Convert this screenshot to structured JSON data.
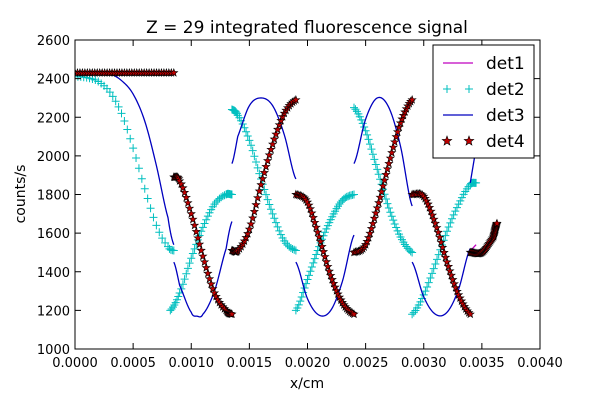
{
  "chart_data": {
    "type": "line",
    "title": "Z = 29 integrated fluorescence signal",
    "xlabel": "x/cm",
    "ylabel": "counts/s",
    "xlim": [
      0.0,
      0.004
    ],
    "ylim": [
      1000,
      2600
    ],
    "xticks": [
      0.0,
      0.0005,
      0.001,
      0.0015,
      0.002,
      0.0025,
      0.003,
      0.0035,
      0.004
    ],
    "xtick_labels": [
      "0.0000",
      "0.0005",
      "0.0010",
      "0.0015",
      "0.0020",
      "0.0025",
      "0.0030",
      "0.0035",
      "0.0040"
    ],
    "yticks": [
      1000,
      1200,
      1400,
      1600,
      1800,
      2000,
      2200,
      2400,
      2600
    ],
    "ytick_labels": [
      "1000",
      "1200",
      "1400",
      "1600",
      "1800",
      "2000",
      "2200",
      "2400",
      "2600"
    ],
    "grid": false,
    "legend_position": "top-right",
    "series": [
      {
        "name": "det1",
        "style": "line",
        "color": "#bf00bf",
        "segments": [
          [
            [
              0.0,
              2430
            ],
            [
              0.00085,
              2430
            ]
          ],
          [
            [
              0.00338,
              1495
            ],
            [
              0.00345,
              1540
            ]
          ]
        ]
      },
      {
        "name": "det2",
        "style": "plus",
        "color": "#00bfbf",
        "segments": [
          [
            [
              0.0,
              2410
            ],
            [
              0.0001,
              2405
            ],
            [
              0.0002,
              2385
            ],
            [
              0.0003,
              2330
            ],
            [
              0.0004,
              2220
            ],
            [
              0.0005,
              2040
            ],
            [
              0.0006,
              1830
            ],
            [
              0.0007,
              1640
            ],
            [
              0.0008,
              1530
            ],
            [
              0.00085,
              1510
            ]
          ],
          [
            [
              0.00082,
              1200
            ],
            [
              0.0009,
              1290
            ],
            [
              0.001,
              1470
            ],
            [
              0.0011,
              1630
            ],
            [
              0.0012,
              1750
            ],
            [
              0.0013,
              1800
            ],
            [
              0.00135,
              1800
            ]
          ],
          [
            [
              0.00135,
              2240
            ],
            [
              0.0014,
              2210
            ],
            [
              0.0015,
              2080
            ],
            [
              0.0016,
              1880
            ],
            [
              0.0017,
              1700
            ],
            [
              0.0018,
              1560
            ],
            [
              0.0019,
              1510
            ]
          ],
          [
            [
              0.0019,
              1200
            ],
            [
              0.002,
              1360
            ],
            [
              0.0021,
              1530
            ],
            [
              0.0022,
              1670
            ],
            [
              0.0023,
              1770
            ],
            [
              0.0024,
              1800
            ]
          ],
          [
            [
              0.0024,
              2250
            ],
            [
              0.0025,
              2130
            ],
            [
              0.0026,
              1930
            ],
            [
              0.0027,
              1730
            ],
            [
              0.0028,
              1580
            ],
            [
              0.0029,
              1500
            ]
          ],
          [
            [
              0.0029,
              1180
            ],
            [
              0.003,
              1280
            ],
            [
              0.0031,
              1440
            ],
            [
              0.0032,
              1610
            ],
            [
              0.0033,
              1750
            ],
            [
              0.0034,
              1850
            ],
            [
              0.00345,
              1860
            ]
          ]
        ]
      },
      {
        "name": "det3",
        "style": "line",
        "color": "#0000bf",
        "segments": [
          [
            [
              0.0,
              2430
            ],
            [
              0.0003,
              2425
            ],
            [
              0.0004,
              2390
            ],
            [
              0.0005,
              2320
            ],
            [
              0.0006,
              2180
            ],
            [
              0.0007,
              1950
            ],
            [
              0.0008,
              1680
            ],
            [
              0.00085,
              1540
            ]
          ],
          [
            [
              0.00085,
              1450
            ],
            [
              0.0009,
              1330
            ],
            [
              0.001,
              1190
            ],
            [
              0.00105,
              1170
            ],
            [
              0.0011,
              1180
            ],
            [
              0.0012,
              1300
            ],
            [
              0.0013,
              1520
            ],
            [
              0.00135,
              1660
            ]
          ],
          [
            [
              0.00135,
              1960
            ],
            [
              0.0014,
              2100
            ],
            [
              0.0015,
              2260
            ],
            [
              0.0016,
              2300
            ],
            [
              0.0017,
              2260
            ],
            [
              0.0018,
              2110
            ],
            [
              0.0019,
              1880
            ]
          ],
          [
            [
              0.0019,
              1450
            ],
            [
              0.002,
              1260
            ],
            [
              0.0021,
              1175
            ],
            [
              0.0022,
              1200
            ],
            [
              0.0023,
              1350
            ],
            [
              0.0024,
              1590
            ]
          ],
          [
            [
              0.0024,
              1960
            ],
            [
              0.0025,
              2190
            ],
            [
              0.0026,
              2300
            ],
            [
              0.0027,
              2250
            ],
            [
              0.0028,
              2050
            ],
            [
              0.0029,
              1740
            ]
          ],
          [
            [
              0.0029,
              1450
            ],
            [
              0.003,
              1270
            ],
            [
              0.0031,
              1180
            ],
            [
              0.0032,
              1190
            ],
            [
              0.0033,
              1310
            ],
            [
              0.0034,
              1520
            ]
          ],
          [
            [
              0.0034,
              1860
            ],
            [
              0.00345,
              2040
            ]
          ]
        ]
      },
      {
        "name": "det4",
        "style": "star",
        "color": "#bf0000",
        "segments": [
          [
            [
              0.0,
              2430
            ],
            [
              0.00085,
              2430
            ]
          ],
          [
            [
              0.00085,
              1890
            ],
            [
              0.0009,
              1870
            ],
            [
              0.001,
              1700
            ],
            [
              0.0011,
              1480
            ],
            [
              0.0012,
              1290
            ],
            [
              0.0013,
              1200
            ],
            [
              0.00135,
              1180
            ]
          ],
          [
            [
              0.00135,
              1510
            ],
            [
              0.0014,
              1510
            ],
            [
              0.0015,
              1620
            ],
            [
              0.0016,
              1850
            ],
            [
              0.0017,
              2060
            ],
            [
              0.0018,
              2220
            ],
            [
              0.0019,
              2290
            ]
          ],
          [
            [
              0.0019,
              1800
            ],
            [
              0.002,
              1760
            ],
            [
              0.0021,
              1580
            ],
            [
              0.0022,
              1380
            ],
            [
              0.0023,
              1240
            ],
            [
              0.0024,
              1180
            ]
          ],
          [
            [
              0.0024,
              1500
            ],
            [
              0.0025,
              1540
            ],
            [
              0.0026,
              1730
            ],
            [
              0.0027,
              1960
            ],
            [
              0.0028,
              2170
            ],
            [
              0.0029,
              2290
            ]
          ],
          [
            [
              0.0029,
              1800
            ],
            [
              0.003,
              1790
            ],
            [
              0.0031,
              1650
            ],
            [
              0.0032,
              1450
            ],
            [
              0.0033,
              1280
            ],
            [
              0.0034,
              1180
            ]
          ],
          [
            [
              0.0034,
              1500
            ],
            [
              0.0035,
              1500
            ],
            [
              0.0036,
              1580
            ],
            [
              0.00363,
              1650
            ]
          ]
        ]
      }
    ]
  }
}
